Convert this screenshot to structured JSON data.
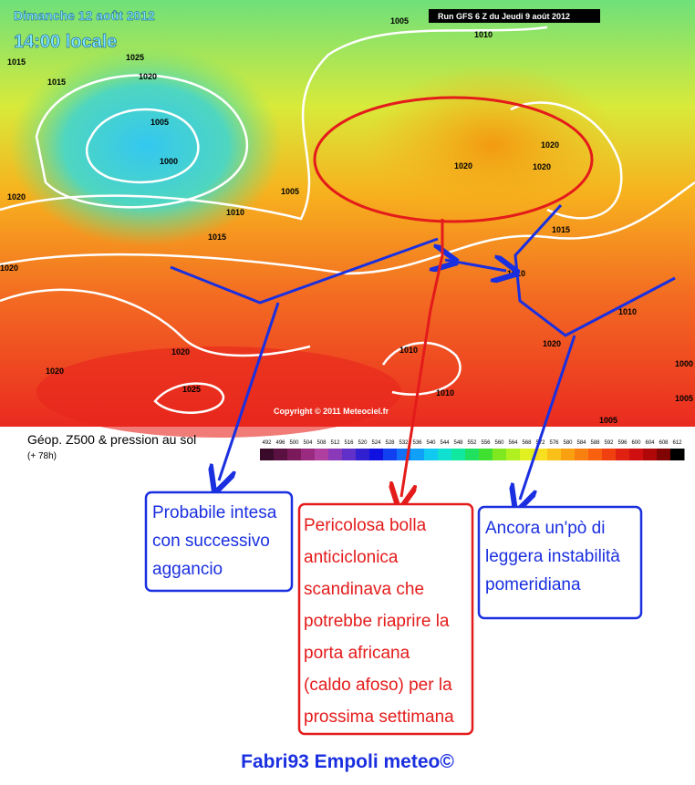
{
  "map": {
    "date": "Dimanche 12 août 2012",
    "time": "14:00 locale",
    "run": "Run GFS 6 Z du Jeudi 9 août 2012",
    "copyright": "Copyright © 2011 Meteociel.fr",
    "isobars": [
      1005,
      1010,
      1025,
      1015,
      1015,
      1020,
      1005,
      1000,
      1005,
      1010,
      1015,
      1020,
      1020,
      1020,
      1020,
      1020,
      1015,
      1010,
      1010,
      1010,
      1020,
      1020,
      1025,
      1010,
      1005,
      1000,
      1005,
      1020
    ]
  },
  "legend": {
    "title": "Géop. Z500 & pression au sol",
    "subtitle": "(+ 78h)",
    "scale": [
      "492",
      "496",
      "500",
      "504",
      "508",
      "512",
      "516",
      "520",
      "524",
      "528",
      "532",
      "536",
      "540",
      "544",
      "548",
      "552",
      "556",
      "560",
      "564",
      "568",
      "572",
      "576",
      "580",
      "584",
      "588",
      "592",
      "596",
      "600",
      "604",
      "608",
      "612"
    ]
  },
  "annotations": [
    {
      "lines": [
        "Probabile intesa",
        "con successivo",
        "aggancio"
      ]
    },
    {
      "lines": [
        "Pericolosa bolla",
        "anticiclonica",
        "scandinava che",
        "potrebbe riaprire la",
        "porta africana",
        "(caldo afoso) per la",
        "prossima settimana"
      ]
    },
    {
      "lines": [
        "Ancora un'pò di",
        "leggera instabilità",
        "pomeridiana"
      ]
    }
  ],
  "footer": "Fabri93 Empoli meteo©"
}
